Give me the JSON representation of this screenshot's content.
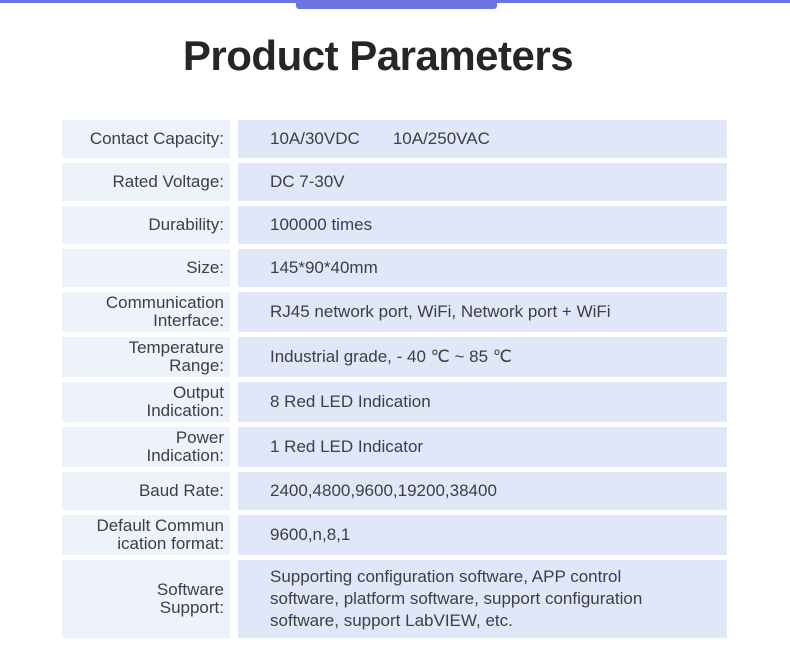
{
  "page": {
    "title": "Product Parameters"
  },
  "colors": {
    "accent": "#6b74e0",
    "label_bg": "#eef2fb",
    "value_bg": "#dfe7f8",
    "text": "#3e3e43",
    "title_text": "#26252a"
  },
  "table": {
    "rows": [
      {
        "label": "Contact Capacity:",
        "value": "10A/30VDC       10A/250VAC"
      },
      {
        "label": "Rated Voltage:",
        "value": "DC 7-30V"
      },
      {
        "label": "Durability:",
        "value": "100000 times"
      },
      {
        "label": "Size:",
        "value": "145*90*40mm"
      },
      {
        "label": "Communication\nInterface:",
        "value": "RJ45 network port, WiFi, Network port + WiFi"
      },
      {
        "label": "Temperature\nRange:",
        "value": "Industrial grade, - 40 ℃ ~ 85 ℃"
      },
      {
        "label": "Output\nIndication:",
        "value": "8 Red LED Indication"
      },
      {
        "label": "Power\nIndication:",
        "value": "1 Red LED Indicator"
      },
      {
        "label": "Baud Rate:",
        "value": "2400,4800,9600,19200,38400"
      },
      {
        "label": "Default Commun\nication format:",
        "value": "9600,n,8,1"
      },
      {
        "label": "Software\nSupport:",
        "value": "Supporting configuration software, APP control\nsoftware, platform software, support configuration\nsoftware, support LabVIEW, etc."
      }
    ]
  }
}
